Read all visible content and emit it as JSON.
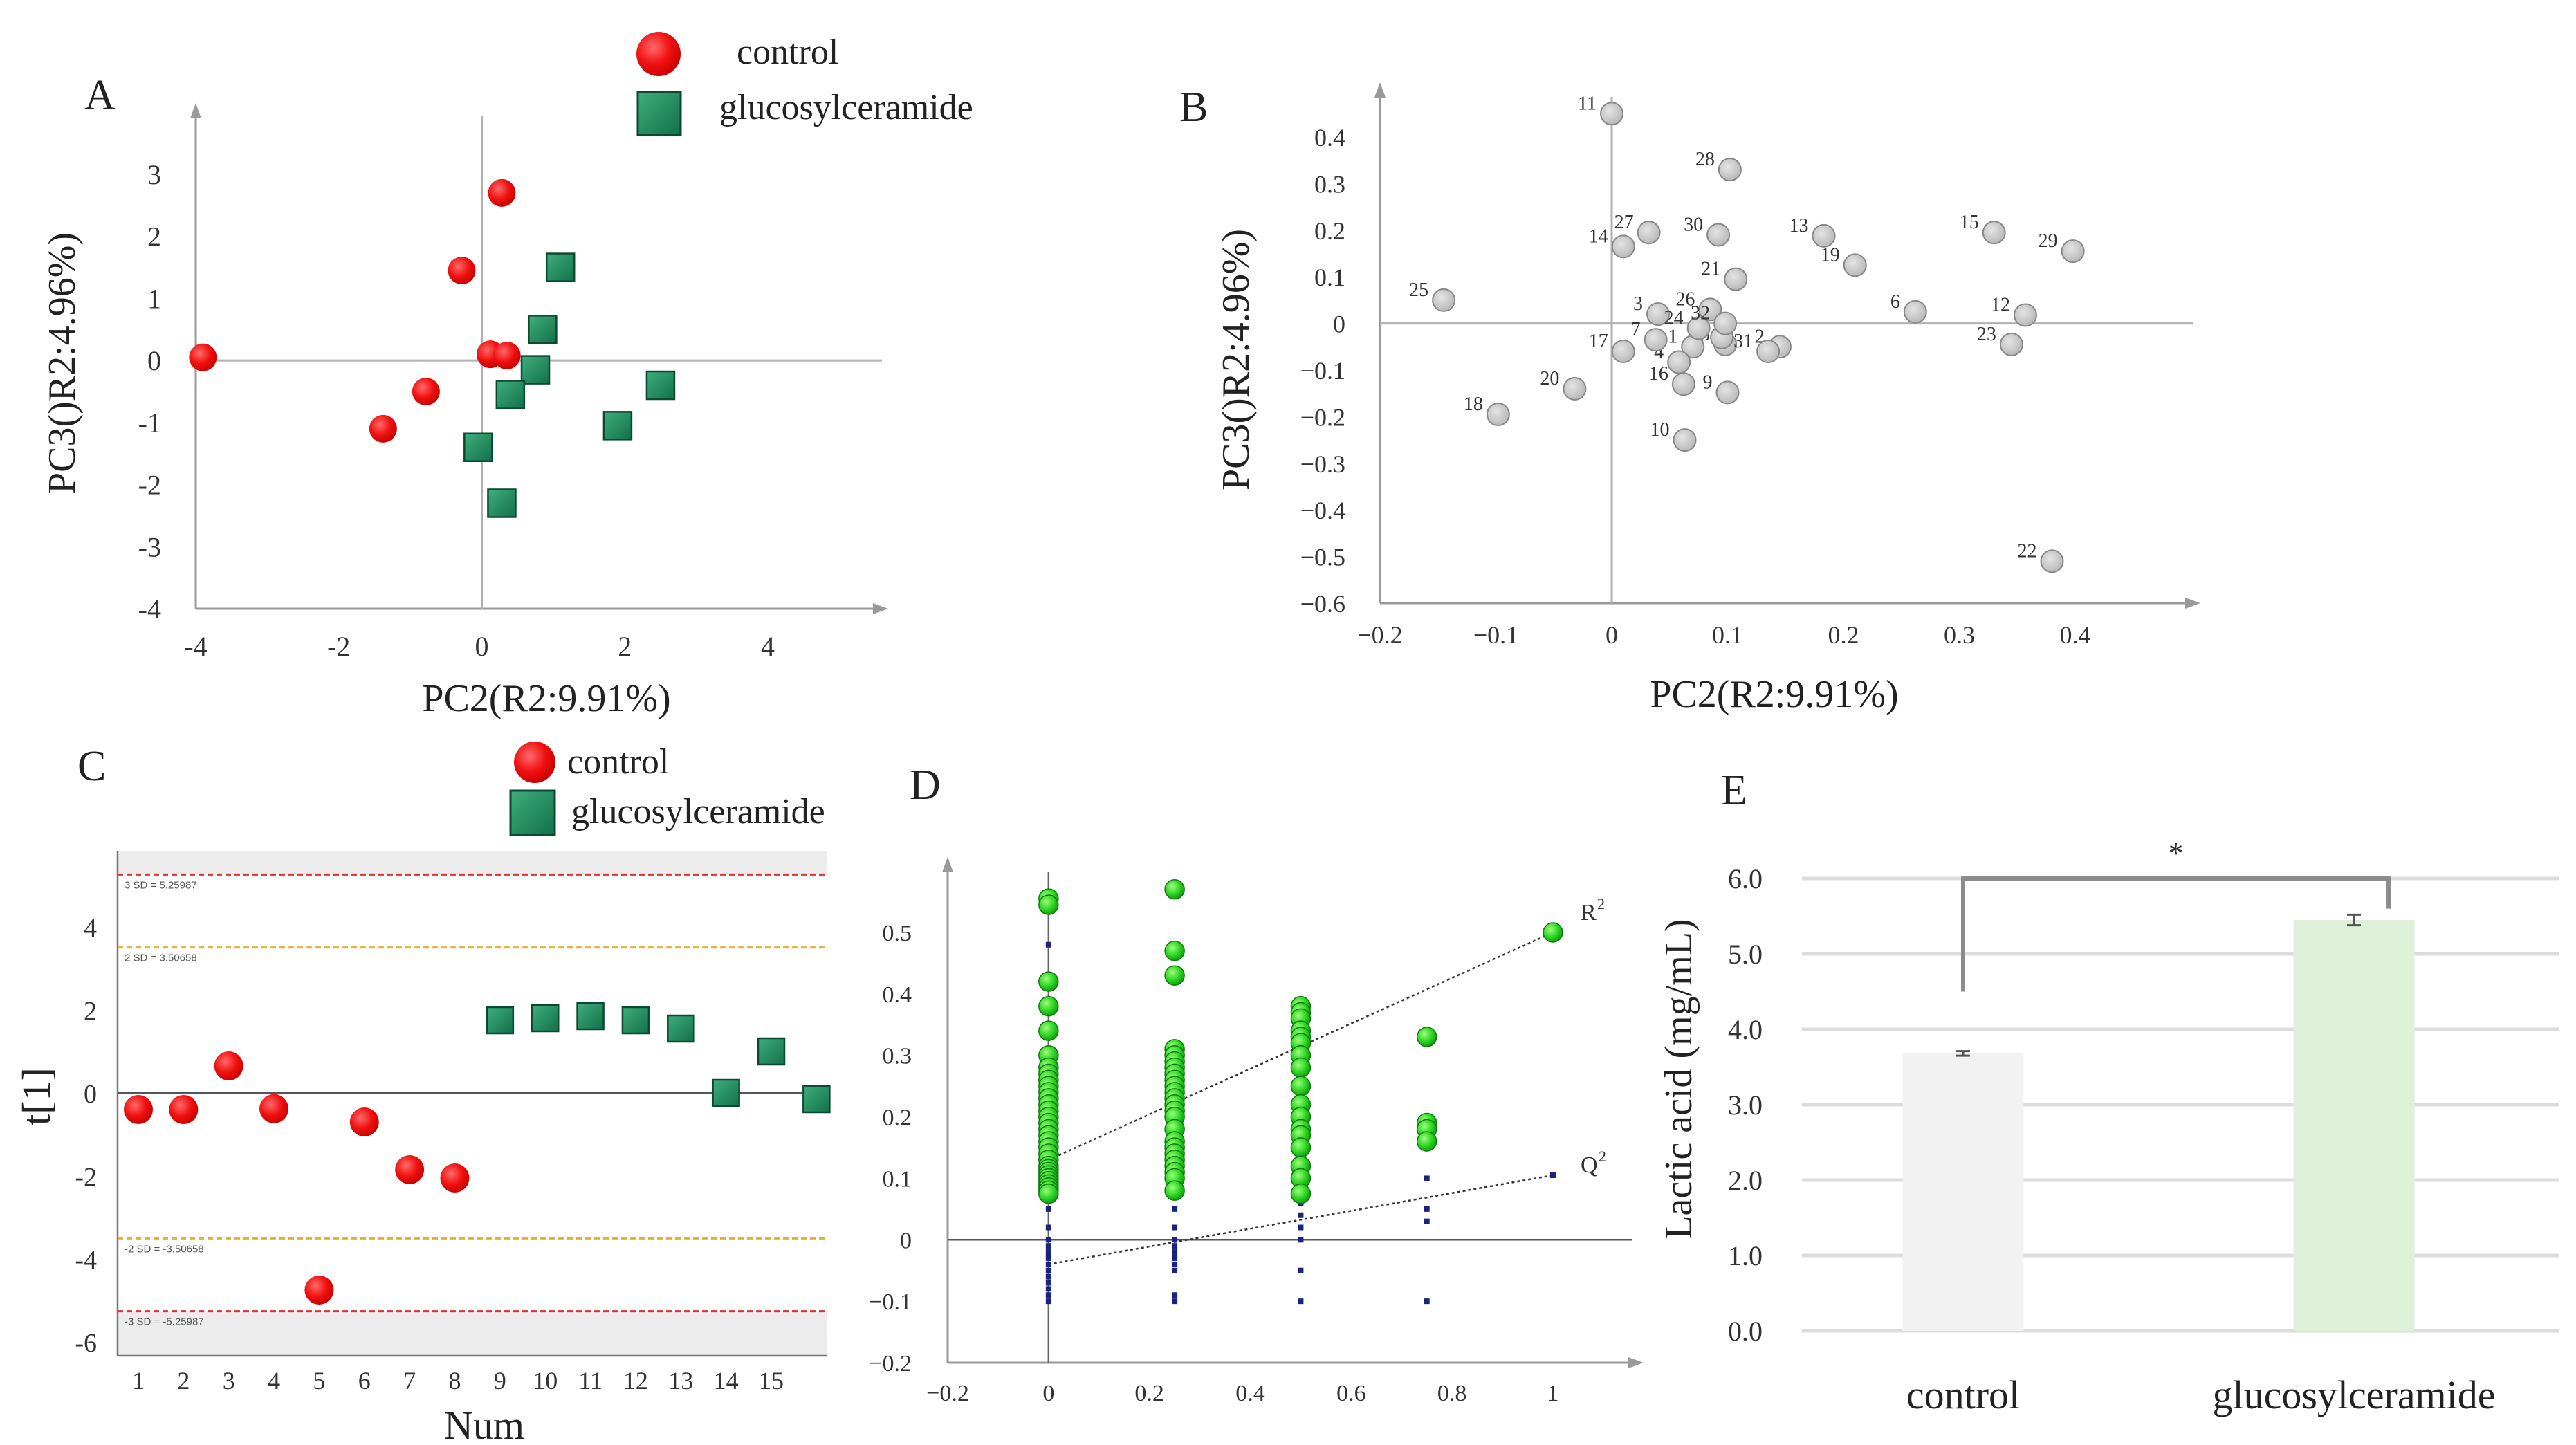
{
  "figure": {
    "panel_labels": [
      "A",
      "B",
      "C",
      "D",
      "E"
    ]
  },
  "chart_data": [
    {
      "panel": "A",
      "type": "scatter",
      "xlabel": "PC2(R2:9.91%)",
      "ylabel": "PC3()R2:4.96%)",
      "xlim": [
        -4,
        6
      ],
      "ylim": [
        -4,
        4
      ],
      "xticks": [
        -4,
        -2,
        0,
        2,
        4
      ],
      "yticks": [
        -4,
        -3,
        -2,
        -1,
        0,
        1,
        2,
        3
      ],
      "legend": {
        "position": "top-right",
        "entries": [
          "control",
          "glucosylceramide"
        ]
      },
      "colors": {
        "control": "#ff0000",
        "glucosylceramide": "#1e8a5a"
      },
      "series": [
        {
          "name": "control",
          "marker": "circle",
          "points": [
            [
              -3.9,
              0.05
            ],
            [
              0.28,
              2.7
            ],
            [
              -0.28,
              1.45
            ],
            [
              0.12,
              0.1
            ],
            [
              0.35,
              0.08
            ],
            [
              -0.78,
              -0.5
            ],
            [
              -1.38,
              -1.1
            ]
          ]
        },
        {
          "name": "glucosylceramide",
          "marker": "square",
          "points": [
            [
              1.1,
              1.5
            ],
            [
              0.85,
              0.5
            ],
            [
              0.75,
              -0.15
            ],
            [
              0.4,
              -0.55
            ],
            [
              2.5,
              -0.4
            ],
            [
              1.9,
              -1.05
            ],
            [
              -0.05,
              -1.4
            ],
            [
              0.28,
              -2.3
            ]
          ]
        }
      ]
    },
    {
      "panel": "B",
      "type": "scatter",
      "xlabel": "PC2(R2:9.91%)",
      "ylabel": "PC3()R2:4.96%)",
      "xlim": [
        -0.2,
        0.5
      ],
      "ylim": [
        -0.6,
        0.5
      ],
      "xticks": [
        -0.2,
        -0.1,
        0,
        0.1,
        0.2,
        0.3,
        0.4
      ],
      "xtick_labels": [
        "−0.2",
        "−0.1",
        "0",
        "0.1",
        "0.2",
        "0.3",
        "0.4"
      ],
      "yticks": [
        -0.6,
        -0.5,
        -0.4,
        -0.3,
        -0.2,
        -0.1,
        0,
        0.1,
        0.2,
        0.3,
        0.4
      ],
      "ytick_labels": [
        "−0.6",
        "−0.5",
        "−0.4",
        "−0.3",
        "−0.2",
        "−0.1",
        "0",
        "0.1",
        "0.2",
        "0.3",
        "0.4"
      ],
      "colors": {
        "point": "#c8c8c8"
      },
      "points": [
        {
          "label": "1",
          "x": 0.07,
          "y": -0.05
        },
        {
          "label": "2",
          "x": 0.145,
          "y": -0.05
        },
        {
          "label": "3",
          "x": 0.04,
          "y": 0.02
        },
        {
          "label": "4",
          "x": 0.058,
          "y": -0.083
        },
        {
          "label": "5",
          "x": 0.098,
          "y": -0.045
        },
        {
          "label": "6",
          "x": 0.262,
          "y": 0.025
        },
        {
          "label": "7",
          "x": 0.038,
          "y": -0.035
        },
        {
          "label": "8",
          "x": 0.095,
          "y": -0.03
        },
        {
          "label": "9",
          "x": 0.1,
          "y": -0.148
        },
        {
          "label": "10",
          "x": 0.063,
          "y": -0.25
        },
        {
          "label": "11",
          "x": 0.0,
          "y": 0.45
        },
        {
          "label": "12",
          "x": 0.357,
          "y": 0.018
        },
        {
          "label": "13",
          "x": 0.183,
          "y": 0.188
        },
        {
          "label": "14",
          "x": 0.01,
          "y": 0.165
        },
        {
          "label": "15",
          "x": 0.33,
          "y": 0.195
        },
        {
          "label": "16",
          "x": 0.062,
          "y": -0.13
        },
        {
          "label": "17",
          "x": 0.01,
          "y": -0.06
        },
        {
          "label": "18",
          "x": -0.098,
          "y": -0.195
        },
        {
          "label": "19",
          "x": 0.21,
          "y": 0.125
        },
        {
          "label": "20",
          "x": -0.032,
          "y": -0.14
        },
        {
          "label": "21",
          "x": 0.107,
          "y": 0.095
        },
        {
          "label": "22",
          "x": 0.38,
          "y": -0.51
        },
        {
          "label": "23",
          "x": 0.345,
          "y": -0.045
        },
        {
          "label": "24",
          "x": 0.075,
          "y": -0.01
        },
        {
          "label": "25",
          "x": -0.145,
          "y": 0.05
        },
        {
          "label": "26",
          "x": 0.085,
          "y": 0.03
        },
        {
          "label": "27",
          "x": 0.032,
          "y": 0.195
        },
        {
          "label": "28",
          "x": 0.102,
          "y": 0.33
        },
        {
          "label": "29",
          "x": 0.398,
          "y": 0.155
        },
        {
          "label": "30",
          "x": 0.092,
          "y": 0.19
        },
        {
          "label": "31",
          "x": 0.135,
          "y": -0.06
        },
        {
          "label": "32",
          "x": 0.098,
          "y": 0.0
        }
      ]
    },
    {
      "panel": "C",
      "type": "scatter",
      "xlabel": "Num",
      "ylabel": "t[1]",
      "xlim": [
        0.95,
        16.2
      ],
      "ylim": [
        -6.3,
        5.8
      ],
      "xticks": [
        1,
        2,
        3,
        4,
        5,
        6,
        7,
        8,
        9,
        10,
        11,
        12,
        13,
        14,
        15
      ],
      "yticks": [
        -6,
        -4,
        -2,
        0,
        2,
        4
      ],
      "legend": {
        "position": "top",
        "entries": [
          "control",
          "glucosylceramide"
        ]
      },
      "colors": {
        "control": "#ff0000",
        "glucosylceramide": "#1e8a5a",
        "sd3": "#e03030",
        "sd2": "#e8b030"
      },
      "reference_lines": [
        {
          "label": "3 SD = 5.25987",
          "y": 5.25987,
          "level": "sd3"
        },
        {
          "label": "2 SD = 3.50658",
          "y": 3.50658,
          "level": "sd2"
        },
        {
          "label": "-2 SD = -3.50658",
          "y": -3.50658,
          "level": "sd2"
        },
        {
          "label": "-3 SD = -5.25987",
          "y": -5.25987,
          "level": "sd3"
        }
      ],
      "series": [
        {
          "name": "control",
          "marker": "circle",
          "x": [
            1,
            2,
            3,
            4,
            5,
            6,
            7,
            8
          ],
          "values": [
            -0.4,
            -0.4,
            0.65,
            -0.38,
            -4.75,
            -0.7,
            -1.85,
            -2.05
          ]
        },
        {
          "name": "glucosylceramide",
          "marker": "square",
          "x": [
            9,
            10,
            11,
            12,
            13,
            14,
            15,
            16
          ],
          "values": [
            1.75,
            1.8,
            1.85,
            1.75,
            1.55,
            0.0,
            1.0,
            -0.15
          ]
        }
      ]
    },
    {
      "panel": "D",
      "type": "scatter",
      "xlabel": "",
      "ylabel": "",
      "xlim": [
        -0.2,
        1.15
      ],
      "ylim": [
        -0.2,
        0.58
      ],
      "xticks": [
        -0.2,
        0,
        0.2,
        0.4,
        0.6,
        0.8,
        1
      ],
      "xtick_labels": [
        "−0.2",
        "0",
        "0.2",
        "0.4",
        "0.6",
        "0.8",
        "1"
      ],
      "yticks": [
        -0.2,
        -0.1,
        0,
        0.1,
        0.2,
        0.3,
        0.4,
        0.5
      ],
      "ytick_labels": [
        "−0.2",
        "−0.1",
        "0",
        "0.1",
        "0.2",
        "0.3",
        "0.4",
        "0.5"
      ],
      "colors": {
        "r2": "#22cc22",
        "q2": "#1a237e",
        "line": "#333333"
      },
      "lines": [
        {
          "name": "R²",
          "x1": 0,
          "y1": 0.13,
          "x2": 1,
          "y2": 0.5
        },
        {
          "name": "Q²",
          "x1": 0,
          "y1": -0.04,
          "x2": 1,
          "y2": 0.105
        }
      ],
      "series": [
        {
          "name": "R²",
          "marker": "circle",
          "x": [
            0,
            0,
            0,
            0,
            0,
            0,
            0,
            0,
            0,
            0,
            0,
            0,
            0,
            0,
            0,
            0,
            0,
            0,
            0,
            0,
            0,
            0,
            0,
            0,
            0,
            0,
            0,
            0,
            0,
            0,
            0,
            0,
            0.25,
            0.25,
            0.25,
            0.25,
            0.25,
            0.25,
            0.25,
            0.25,
            0.25,
            0.25,
            0.25,
            0.25,
            0.25,
            0.25,
            0.25,
            0.25,
            0.25,
            0.25,
            0.25,
            0.25,
            0.25,
            0.25,
            0.25,
            0.25,
            0.5,
            0.5,
            0.5,
            0.5,
            0.5,
            0.5,
            0.5,
            0.5,
            0.5,
            0.5,
            0.5,
            0.5,
            0.5,
            0.5,
            0.5,
            0.5,
            0.5,
            0.75,
            0.75,
            0.75,
            0.75,
            1
          ],
          "values": [
            0.555,
            0.545,
            0.42,
            0.38,
            0.34,
            0.3,
            0.28,
            0.27,
            0.26,
            0.25,
            0.24,
            0.23,
            0.22,
            0.21,
            0.2,
            0.19,
            0.18,
            0.17,
            0.16,
            0.15,
            0.14,
            0.13,
            0.12,
            0.115,
            0.11,
            0.105,
            0.1,
            0.095,
            0.09,
            0.085,
            0.08,
            0.075,
            0.57,
            0.47,
            0.43,
            0.31,
            0.3,
            0.29,
            0.28,
            0.27,
            0.26,
            0.25,
            0.24,
            0.23,
            0.22,
            0.21,
            0.2,
            0.18,
            0.16,
            0.15,
            0.14,
            0.13,
            0.12,
            0.11,
            0.1,
            0.08,
            0.38,
            0.37,
            0.36,
            0.34,
            0.33,
            0.32,
            0.3,
            0.28,
            0.25,
            0.22,
            0.2,
            0.18,
            0.17,
            0.15,
            0.12,
            0.1,
            0.075,
            0.33,
            0.19,
            0.18,
            0.16,
            0.5
          ]
        },
        {
          "name": "Q²",
          "marker": "square",
          "x": [
            0,
            0,
            0,
            0,
            0,
            0,
            0,
            0,
            0,
            0,
            0,
            0,
            0,
            0,
            0,
            0,
            0,
            0,
            0,
            0.25,
            0.25,
            0.25,
            0.25,
            0.25,
            0.25,
            0.25,
            0.25,
            0.25,
            0.25,
            0.25,
            0.25,
            0.25,
            0.5,
            0.5,
            0.5,
            0.5,
            0.5,
            0.5,
            0.5,
            0.5,
            0.75,
            0.75,
            0.75,
            0.75,
            1
          ],
          "values": [
            0.48,
            0.3,
            0.2,
            0.15,
            0.1,
            0.05,
            0.02,
            0.0,
            -0.01,
            -0.02,
            -0.03,
            -0.04,
            -0.05,
            -0.06,
            -0.07,
            -0.08,
            -0.09,
            -0.1,
            0.12,
            0.48,
            0.25,
            0.1,
            0.05,
            0.02,
            0.0,
            -0.01,
            -0.02,
            -0.03,
            -0.04,
            -0.05,
            -0.09,
            -0.1,
            0.12,
            0.08,
            0.06,
            0.04,
            0.02,
            0.0,
            -0.05,
            -0.1,
            0.1,
            0.05,
            0.03,
            -0.1,
            0.105
          ]
        }
      ],
      "annotations": [
        "R",
        "2",
        "Q",
        "2"
      ]
    },
    {
      "panel": "E",
      "type": "bar",
      "ylabel": "Lactic acid (mg/mL)",
      "categories": [
        "control",
        "glucosylceramide"
      ],
      "values": [
        3.68,
        5.45
      ],
      "errors": [
        0.03,
        0.07
      ],
      "ylim": [
        0,
        6.0
      ],
      "yticks": [
        0,
        1,
        2,
        3,
        4,
        5,
        6
      ],
      "ytick_labels": [
        "0.0",
        "1.0",
        "2.0",
        "3.0",
        "4.0",
        "5.0",
        "6.0"
      ],
      "grid": true,
      "colors": {
        "control": "#f2f2f2",
        "glucosylceramide": "#dff0d8",
        "bracket": "#8c8c8c"
      },
      "significance": "*"
    }
  ]
}
